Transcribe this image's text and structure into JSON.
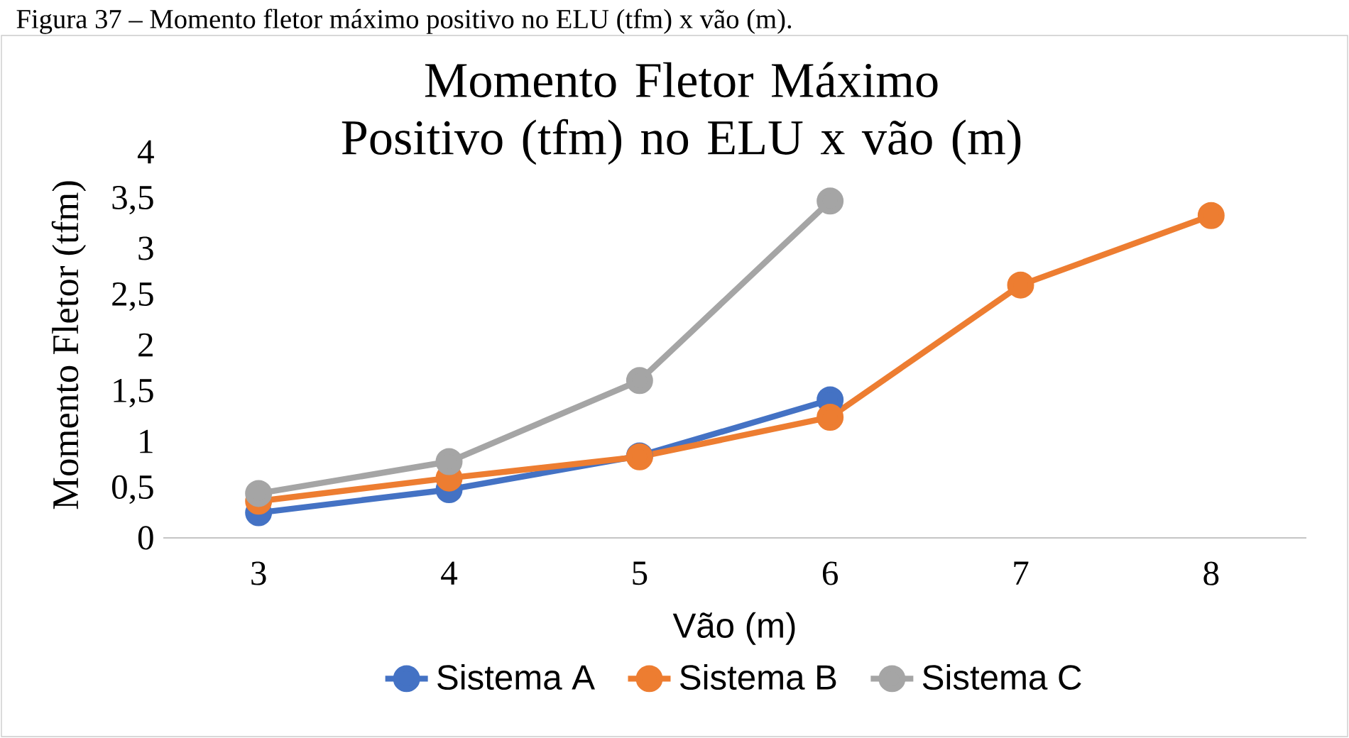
{
  "chart_data": {
    "type": "line",
    "title": "Momento Fletor Máximo Positivo (tfm) no ELU x vão (m)",
    "xlabel": "Vão (m)",
    "ylabel": "Momento Fletor  (tfm)",
    "annotations": [
      "Figura 37 – Momento fletor máximo positivo no ELU (tfm) x vão (m)."
    ],
    "categories": [
      "3",
      "4",
      "5",
      "6",
      "7",
      "8"
    ],
    "series": [
      {
        "name": "Sistema A",
        "color": "#4472c4",
        "values": [
          0.26,
          0.5,
          0.85,
          1.43,
          null,
          null
        ]
      },
      {
        "name": "Sistema B",
        "color": "#ed7d31",
        "values": [
          0.38,
          0.62,
          0.84,
          1.25,
          2.62,
          3.34
        ]
      },
      {
        "name": "Sistema C",
        "color": "#a5a5a5",
        "values": [
          0.46,
          0.79,
          1.63,
          3.49,
          null,
          null
        ]
      }
    ],
    "ylim": [
      0,
      4
    ],
    "yticks": [
      0,
      {
        "value": 0.5,
        "label": "0,5"
      },
      1,
      {
        "value": 1.5,
        "label": "1,5"
      },
      2,
      {
        "value": 2.5,
        "label": "2,5"
      },
      3,
      {
        "value": 3.5,
        "label": "3,5"
      },
      4
    ],
    "grid": false,
    "legend": "bottom",
    "marker": "circle",
    "line_style": "solid"
  }
}
